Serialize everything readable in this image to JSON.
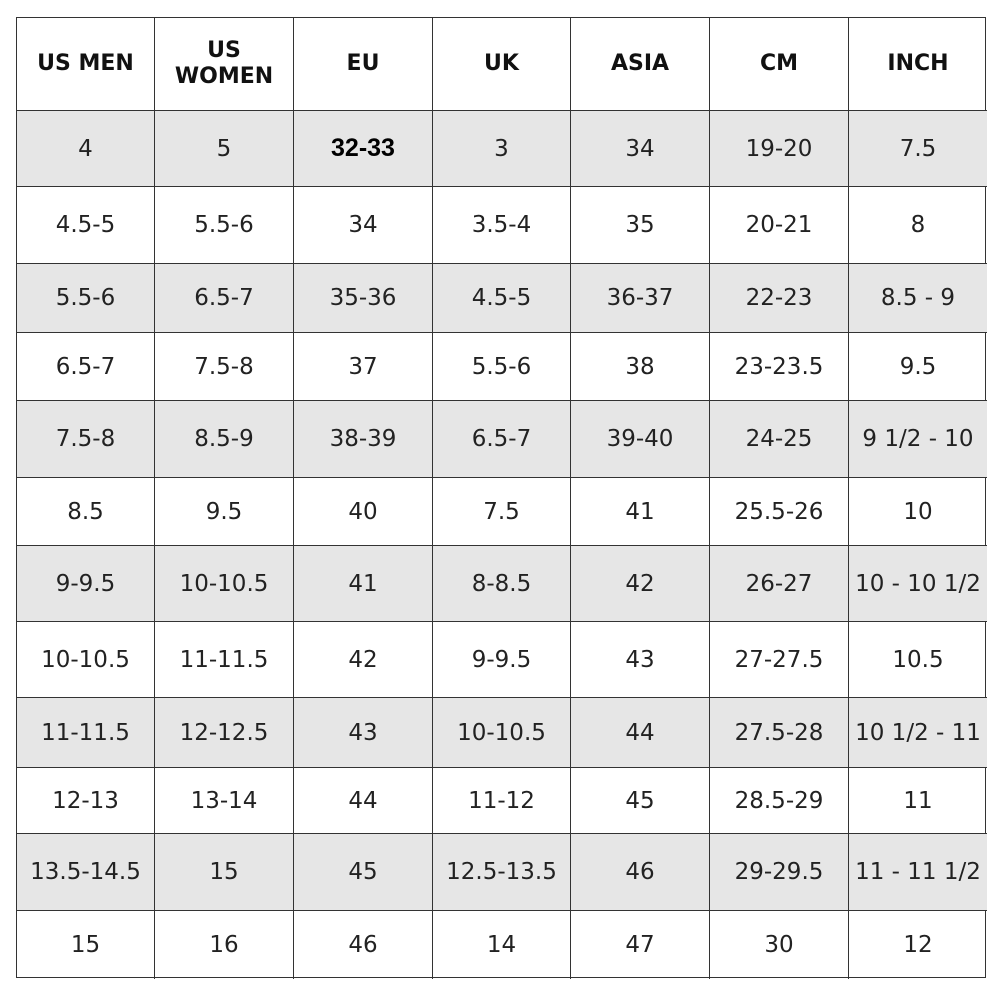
{
  "table": {
    "header": [
      "US MEN",
      "US WOMEN",
      "EU",
      "UK",
      "ASIA",
      "CM",
      "INCH"
    ],
    "rows": [
      [
        "4",
        "5",
        "32-33",
        "3",
        "34",
        "19-20",
        "7.5"
      ],
      [
        "4.5-5",
        "5.5-6",
        "34",
        "3.5-4",
        "35",
        "20-21",
        "8"
      ],
      [
        "5.5-6",
        "6.5-7",
        "35-36",
        "4.5-5",
        "36-37",
        "22-23",
        "8.5 - 9"
      ],
      [
        "6.5-7",
        "7.5-8",
        "37",
        "5.5-6",
        "38",
        "23-23.5",
        "9.5"
      ],
      [
        "7.5-8",
        "8.5-9",
        "38-39",
        "6.5-7",
        "39-40",
        "24-25",
        "9 1/2 - 10"
      ],
      [
        "8.5",
        "9.5",
        "40",
        "7.5",
        "41",
        "25.5-26",
        "10"
      ],
      [
        "9-9.5",
        "10-10.5",
        "41",
        "8-8.5",
        "42",
        "26-27",
        "10 - 10 1/2"
      ],
      [
        "10-10.5",
        "11-11.5",
        "42",
        "9-9.5",
        "43",
        "27-27.5",
        "10.5"
      ],
      [
        "11-11.5",
        "12-12.5",
        "43",
        "10-10.5",
        "44",
        "27.5-28",
        "10 1/2 - 11"
      ],
      [
        "12-13",
        "13-14",
        "44",
        "11-12",
        "45",
        "28.5-29",
        "11"
      ],
      [
        "13.5-14.5",
        "15",
        "45",
        "12.5-13.5",
        "46",
        "29-29.5",
        "11 - 11 1/2"
      ],
      [
        "15",
        "16",
        "46",
        "14",
        "47",
        "30",
        "12"
      ]
    ]
  }
}
